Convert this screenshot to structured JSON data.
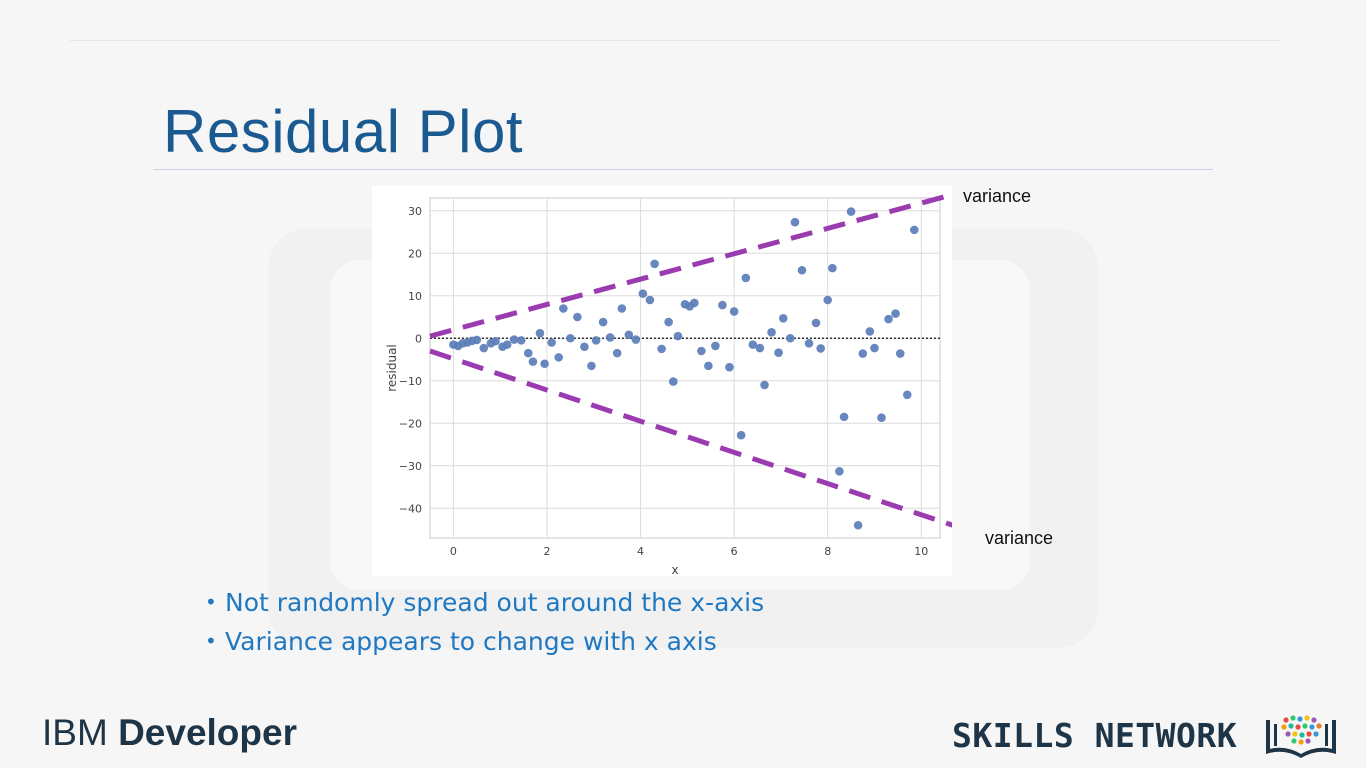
{
  "slide": {
    "title": "Residual Plot",
    "annotations": {
      "variance_top": "variance",
      "variance_bottom": "variance"
    },
    "bullets": [
      "Not randomly spread out around the x-axis",
      "Variance appears to change with x axis"
    ],
    "footer": {
      "brand_light": "IBM",
      "brand_bold": "Developer",
      "network": "SKILLS NETWORK"
    },
    "colors": {
      "title": "#1b5a91",
      "bullets": "#1f79c2",
      "points": "#5b7db8",
      "envelope": "#9b3bb0"
    }
  },
  "chart_data": {
    "type": "scatter",
    "xlabel": "x",
    "ylabel": "residual",
    "xlim": [
      -0.5,
      10.4
    ],
    "ylim": [
      -47,
      33
    ],
    "xticks": [
      0,
      2,
      4,
      6,
      8,
      10
    ],
    "yticks": [
      30,
      20,
      10,
      0,
      -10,
      -20,
      -30,
      -40
    ],
    "ytick_labels": [
      "30",
      "20",
      "10",
      "0",
      "−10",
      "−20",
      "−30",
      "−40"
    ],
    "grid": true,
    "zero_line": {
      "y": 0,
      "style": "dotted"
    },
    "envelope_lines": [
      {
        "label": "variance",
        "from": [
          -0.5,
          0.5
        ],
        "to": [
          10.4,
          33
        ]
      },
      {
        "label": "variance",
        "from": [
          -0.5,
          -3
        ],
        "to": [
          10.4,
          -43
        ]
      }
    ],
    "points": [
      [
        0.0,
        -1.5
      ],
      [
        0.1,
        -1.8
      ],
      [
        0.2,
        -1.2
      ],
      [
        0.3,
        -1.0
      ],
      [
        0.4,
        -0.6
      ],
      [
        0.5,
        -0.4
      ],
      [
        0.65,
        -2.3
      ],
      [
        0.8,
        -1.2
      ],
      [
        0.9,
        -0.7
      ],
      [
        1.05,
        -2.0
      ],
      [
        1.15,
        -1.5
      ],
      [
        1.3,
        -0.3
      ],
      [
        1.45,
        -0.5
      ],
      [
        1.6,
        -3.5
      ],
      [
        1.7,
        -5.5
      ],
      [
        1.85,
        1.2
      ],
      [
        1.95,
        -6.0
      ],
      [
        2.1,
        -1.0
      ],
      [
        2.25,
        -4.5
      ],
      [
        2.35,
        7.0
      ],
      [
        2.5,
        0.0
      ],
      [
        2.65,
        5.0
      ],
      [
        2.8,
        -2.0
      ],
      [
        2.95,
        -6.5
      ],
      [
        3.05,
        -0.5
      ],
      [
        3.2,
        3.8
      ],
      [
        3.35,
        0.2
      ],
      [
        3.5,
        -3.5
      ],
      [
        3.6,
        7.0
      ],
      [
        3.75,
        0.8
      ],
      [
        3.9,
        -0.3
      ],
      [
        4.05,
        10.5
      ],
      [
        4.2,
        9.0
      ],
      [
        4.3,
        17.5
      ],
      [
        4.45,
        -2.5
      ],
      [
        4.6,
        3.8
      ],
      [
        4.7,
        -10.2
      ],
      [
        4.8,
        0.5
      ],
      [
        4.95,
        8.0
      ],
      [
        5.05,
        7.5
      ],
      [
        5.15,
        8.3
      ],
      [
        5.3,
        -3.0
      ],
      [
        5.45,
        -6.5
      ],
      [
        5.6,
        -1.8
      ],
      [
        5.75,
        7.8
      ],
      [
        5.9,
        -6.8
      ],
      [
        6.0,
        6.3
      ],
      [
        6.15,
        -22.8
      ],
      [
        6.25,
        14.2
      ],
      [
        6.4,
        -1.5
      ],
      [
        6.55,
        -2.3
      ],
      [
        6.65,
        -11.0
      ],
      [
        6.8,
        1.4
      ],
      [
        6.95,
        -3.4
      ],
      [
        7.05,
        4.7
      ],
      [
        7.2,
        0.0
      ],
      [
        7.3,
        27.3
      ],
      [
        7.45,
        16.0
      ],
      [
        7.6,
        -1.2
      ],
      [
        7.75,
        3.6
      ],
      [
        7.85,
        -2.4
      ],
      [
        8.0,
        9.0
      ],
      [
        8.1,
        16.5
      ],
      [
        8.25,
        -31.3
      ],
      [
        8.35,
        -18.5
      ],
      [
        8.5,
        29.8
      ],
      [
        8.65,
        -44.0
      ],
      [
        8.75,
        -3.6
      ],
      [
        8.9,
        1.6
      ],
      [
        9.0,
        -2.3
      ],
      [
        9.15,
        -18.7
      ],
      [
        9.3,
        4.5
      ],
      [
        9.45,
        5.8
      ],
      [
        9.55,
        -3.6
      ],
      [
        9.7,
        -13.3
      ],
      [
        9.85,
        25.5
      ]
    ]
  }
}
